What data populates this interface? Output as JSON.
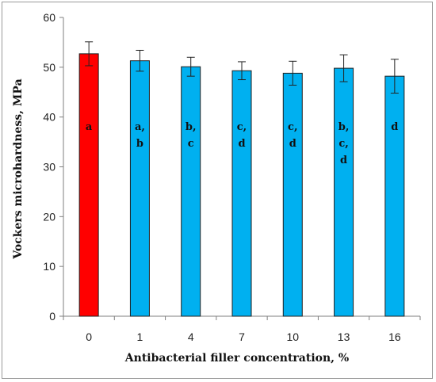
{
  "chart_data": {
    "type": "bar",
    "xlabel": "Antibacterial filler concentration, %",
    "ylabel": "Vockers microhardness, MPa",
    "ylim": [
      0,
      60
    ],
    "yticks": [
      "0",
      "10",
      "20",
      "30",
      "40",
      "50",
      "60"
    ],
    "grid": false,
    "legend": "none",
    "categories": [
      "0",
      "1",
      "4",
      "7",
      "10",
      "13",
      "16"
    ],
    "values": [
      52.7,
      51.3,
      50.1,
      49.3,
      48.8,
      49.8,
      48.2
    ],
    "errors": [
      2.4,
      2.1,
      1.9,
      1.8,
      2.4,
      2.7,
      3.4
    ],
    "significance": [
      [
        "a"
      ],
      [
        "a,",
        "b"
      ],
      [
        "b,",
        "c"
      ],
      [
        "c,",
        "d"
      ],
      [
        "c,",
        "d"
      ],
      [
        "b,",
        "c,",
        "d"
      ],
      [
        "d"
      ]
    ],
    "colors": [
      "#ff0000",
      "#00b0f0",
      "#00b0f0",
      "#00b0f0",
      "#00b0f0",
      "#00b0f0",
      "#00b0f0"
    ],
    "bar_edge_color": "#1f1f1f"
  }
}
